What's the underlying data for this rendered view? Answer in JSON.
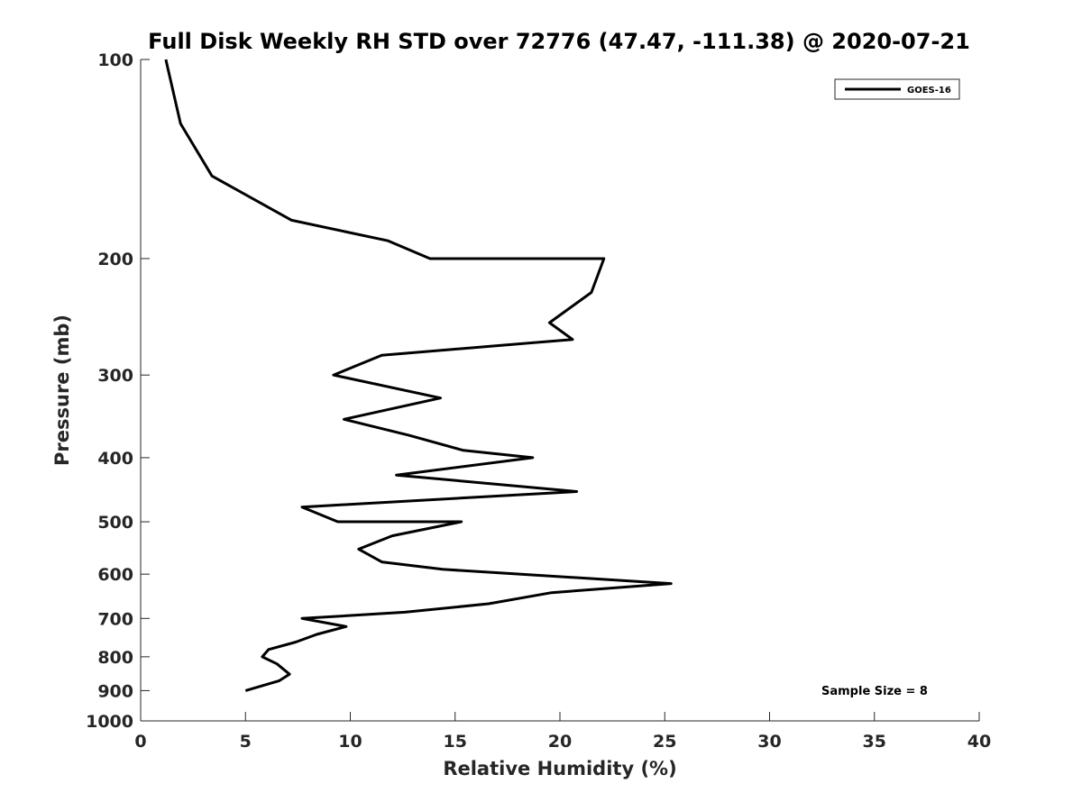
{
  "chart_data": {
    "type": "line",
    "title": "Full Disk Weekly RH STD over 72776 (47.47, -111.38) @ 2020-07-21",
    "xlabel": "Relative Humidity (%)",
    "ylabel": "Pressure (mb)",
    "xlim": [
      0,
      40
    ],
    "ylim": [
      1000,
      100
    ],
    "y_scale": "log",
    "grid": false,
    "legend_position": "top-right",
    "xticks": [
      "0",
      "5",
      "10",
      "15",
      "20",
      "25",
      "30",
      "35",
      "40"
    ],
    "yticks": [
      "100",
      "200",
      "300",
      "400",
      "500",
      "600",
      "700",
      "800",
      "900",
      "1000"
    ],
    "series": [
      {
        "name": "GOES-16",
        "color": "#000000",
        "points": [
          {
            "x": 1.2,
            "y": 100
          },
          {
            "x": 1.9,
            "y": 125
          },
          {
            "x": 3.4,
            "y": 150
          },
          {
            "x": 7.2,
            "y": 175
          },
          {
            "x": 11.8,
            "y": 188
          },
          {
            "x": 13.8,
            "y": 200
          },
          {
            "x": 22.1,
            "y": 200
          },
          {
            "x": 21.5,
            "y": 225
          },
          {
            "x": 19.5,
            "y": 250
          },
          {
            "x": 20.6,
            "y": 265
          },
          {
            "x": 11.5,
            "y": 280
          },
          {
            "x": 9.2,
            "y": 300
          },
          {
            "x": 14.3,
            "y": 325
          },
          {
            "x": 9.7,
            "y": 350
          },
          {
            "x": 12.8,
            "y": 370
          },
          {
            "x": 15.4,
            "y": 390
          },
          {
            "x": 18.7,
            "y": 400
          },
          {
            "x": 12.2,
            "y": 425
          },
          {
            "x": 20.8,
            "y": 450
          },
          {
            "x": 7.7,
            "y": 475
          },
          {
            "x": 9.4,
            "y": 500
          },
          {
            "x": 15.3,
            "y": 500
          },
          {
            "x": 12.0,
            "y": 525
          },
          {
            "x": 10.4,
            "y": 550
          },
          {
            "x": 11.5,
            "y": 575
          },
          {
            "x": 14.4,
            "y": 590
          },
          {
            "x": 25.3,
            "y": 620
          },
          {
            "x": 19.6,
            "y": 640
          },
          {
            "x": 16.6,
            "y": 665
          },
          {
            "x": 12.6,
            "y": 685
          },
          {
            "x": 7.7,
            "y": 700
          },
          {
            "x": 9.8,
            "y": 720
          },
          {
            "x": 8.4,
            "y": 740
          },
          {
            "x": 7.4,
            "y": 760
          },
          {
            "x": 6.1,
            "y": 780
          },
          {
            "x": 5.8,
            "y": 800
          },
          {
            "x": 6.5,
            "y": 820
          },
          {
            "x": 7.1,
            "y": 850
          },
          {
            "x": 6.6,
            "y": 870
          },
          {
            "x": 5.0,
            "y": 900
          }
        ]
      }
    ],
    "annotations": [
      "Sample Size = 8"
    ]
  }
}
